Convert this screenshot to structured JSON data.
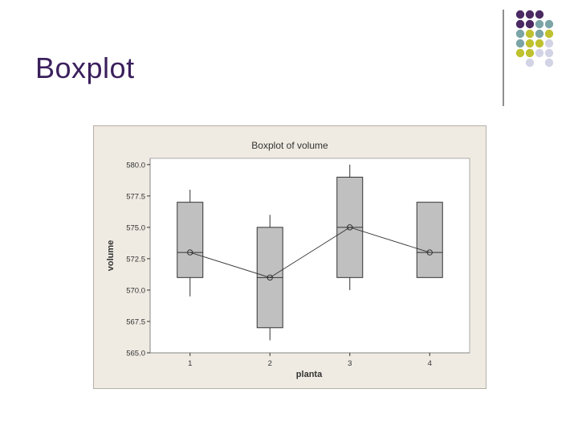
{
  "slide": {
    "title": "Boxplot"
  },
  "decoration": {
    "colors": [
      "#4b2a63",
      "#7aa4a6",
      "#bfc12f",
      "#d3d3e6"
    ],
    "grid": [
      [
        "#4b2a63",
        "#4b2a63",
        "#4b2a63",
        null
      ],
      [
        "#4b2a63",
        "#4b2a63",
        "#7aa4a6",
        "#7aa4a6"
      ],
      [
        "#7aa4a6",
        "#bfc12f",
        "#7aa4a6",
        "#bfc12f"
      ],
      [
        "#7aa4a6",
        "#bfc12f",
        "#bfc12f",
        "#d3d3e6"
      ],
      [
        "#bfc12f",
        "#bfc12f",
        "#d3d3e6",
        "#d3d3e6"
      ],
      [
        null,
        "#d3d3e6",
        null,
        "#d3d3e6"
      ]
    ]
  },
  "chart_data": {
    "type": "boxplot",
    "title": "Boxplot of volume",
    "xlabel": "planta",
    "ylabel": "volume",
    "categories": [
      "1",
      "2",
      "3",
      "4"
    ],
    "yticks": [
      "565.0",
      "567.5",
      "570.0",
      "572.5",
      "575.0",
      "577.5",
      "580.0"
    ],
    "ylim": [
      565,
      580.5
    ],
    "boxes": [
      {
        "category": "1",
        "min": 569.5,
        "q1": 571,
        "median": 573,
        "q3": 577,
        "max": 578,
        "mean": 573
      },
      {
        "category": "2",
        "min": 566,
        "q1": 567,
        "median": 571,
        "q3": 575,
        "max": 576,
        "mean": 571
      },
      {
        "category": "3",
        "min": 570,
        "q1": 571,
        "median": 575,
        "q3": 579,
        "max": 580,
        "mean": 575
      },
      {
        "category": "4",
        "min": 571,
        "q1": 571,
        "median": 573,
        "q3": 577,
        "max": 577,
        "mean": 573
      }
    ],
    "grid": false,
    "box_color": "#c0c0c0",
    "plot_background": "#ffffff",
    "frame_background": "#efebe2"
  }
}
